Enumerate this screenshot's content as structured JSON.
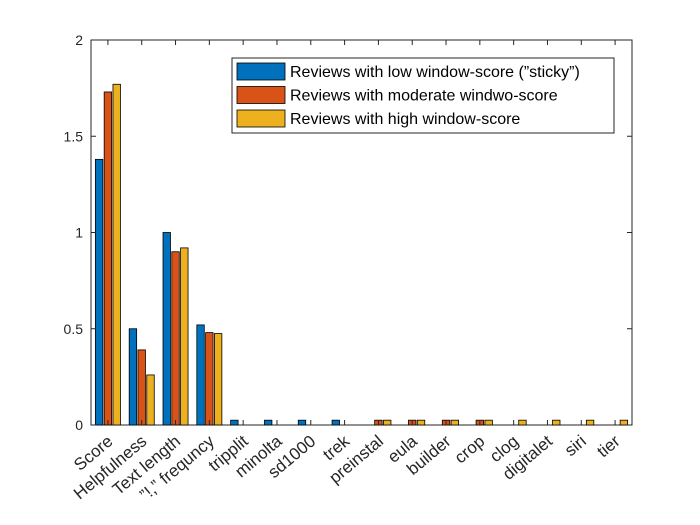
{
  "chart_data": {
    "type": "bar",
    "categories": [
      "Score",
      "Helpfulness",
      "Text length",
      "”!,” frequncy",
      "tripplit",
      "minolta",
      "sd1000",
      "trek",
      "preinstal",
      "eula",
      "builder",
      "crop",
      "clog",
      "digitalet",
      "siri",
      "tier"
    ],
    "series": [
      {
        "name": "Reviews with low window-score (”sticky”)",
        "color": "#0072BD",
        "values": [
          1.38,
          0.5,
          1.0,
          0.52,
          0.025,
          0.025,
          0.025,
          0.025,
          0,
          0,
          0,
          0,
          0,
          0,
          0,
          0
        ]
      },
      {
        "name": "Reviews with moderate windwo-score",
        "color": "#D95319",
        "values": [
          1.73,
          0.39,
          0.9,
          0.48,
          0,
          0,
          0,
          0,
          0.025,
          0.025,
          0.025,
          0.025,
          0,
          0,
          0,
          0
        ]
      },
      {
        "name": "Reviews with high window-score",
        "color": "#EDB120",
        "values": [
          1.77,
          0.26,
          0.92,
          0.475,
          0,
          0,
          0,
          0,
          0.025,
          0.025,
          0.025,
          0.025,
          0.025,
          0.025,
          0.025,
          0.025
        ]
      }
    ],
    "title": "",
    "xlabel": "",
    "ylabel": "",
    "ylim": [
      0,
      2
    ],
    "yticks": [
      0,
      0.5,
      1,
      1.5,
      2
    ],
    "ytick_labels": [
      "0",
      "0.5",
      "1",
      "1.5",
      "2"
    ],
    "grid": false,
    "legend_position": "top-right"
  }
}
